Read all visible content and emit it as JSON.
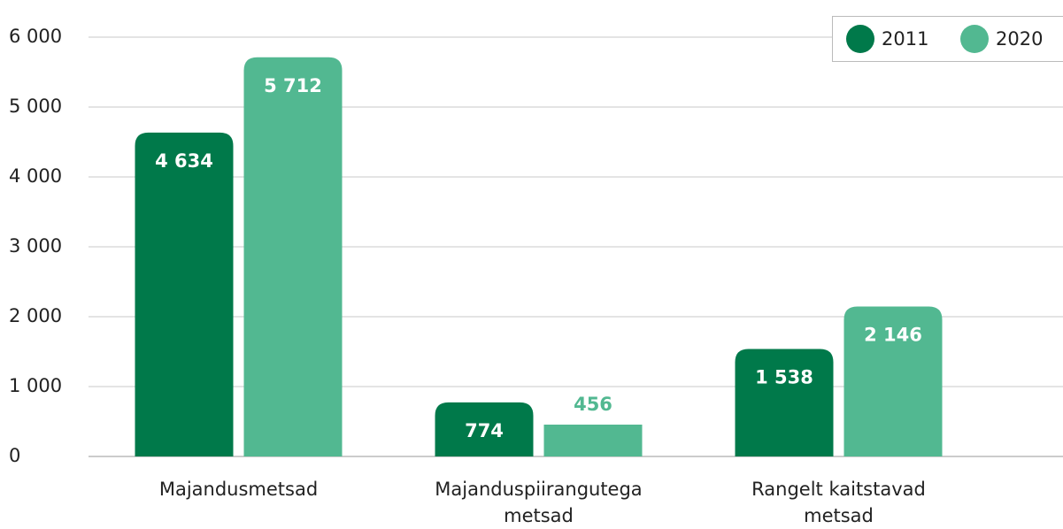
{
  "chart_data": {
    "type": "bar",
    "categories": [
      "Majandusmetsad",
      "Majanduspiirangutega metsad",
      "Rangelt kaitstavad metsad"
    ],
    "series": [
      {
        "name": "2011",
        "color": "#00794a",
        "values": [
          4634,
          774,
          1538
        ],
        "value_labels": [
          "4 634",
          "774",
          "1 538"
        ]
      },
      {
        "name": "2020",
        "color": "#52b891",
        "values": [
          5712,
          456,
          2146
        ],
        "value_labels": [
          "5 712",
          "456",
          "2 146"
        ]
      }
    ],
    "ylim": [
      0,
      6000
    ],
    "yticks": [
      0,
      {
        "value": 1000,
        "label": "1 000"
      },
      {
        "value": 2000,
        "label": "2 000"
      },
      {
        "value": 3000,
        "label": "3 000"
      },
      {
        "value": 4000,
        "label": "4 000"
      },
      {
        "value": 5000,
        "label": "5 000"
      },
      {
        "value": 6000,
        "label": "6 000"
      }
    ],
    "grid": true,
    "legend": "top-right"
  }
}
